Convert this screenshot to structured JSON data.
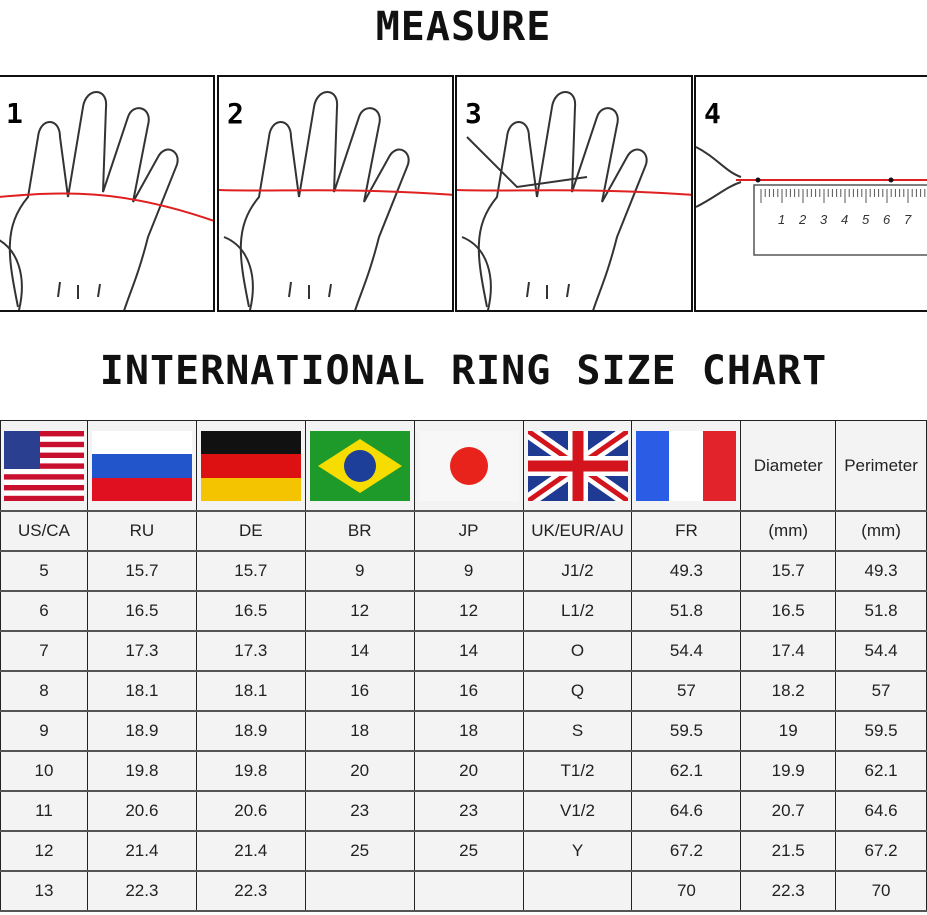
{
  "measure_title": "MEASURE",
  "steps": [
    {
      "number": "1"
    },
    {
      "number": "2"
    },
    {
      "number": "3"
    },
    {
      "number": "4",
      "ruler_marks": [
        "1",
        "2",
        "3",
        "4",
        "5",
        "6",
        "7"
      ]
    }
  ],
  "chart_title": "INTERNATIONAL RING SIZE CHART",
  "colors": {
    "measuring_string": "#e02020",
    "border": "#222222"
  },
  "table": {
    "flags": [
      "us-flag",
      "russia-flag",
      "germany-flag",
      "brazil-flag",
      "japan-flag",
      "uk-flag",
      "france-flag"
    ],
    "header_text": [
      "Diameter",
      "Perimeter"
    ],
    "columns": [
      "US/CA",
      "RU",
      "DE",
      "BR",
      "JP",
      "UK/EUR/AU",
      "FR",
      "(mm)",
      "(mm)"
    ],
    "rows": [
      [
        "5",
        "15.7",
        "15.7",
        "9",
        "9",
        "J1/2",
        "49.3",
        "15.7",
        "49.3"
      ],
      [
        "6",
        "16.5",
        "16.5",
        "12",
        "12",
        "L1/2",
        "51.8",
        "16.5",
        "51.8"
      ],
      [
        "7",
        "17.3",
        "17.3",
        "14",
        "14",
        "O",
        "54.4",
        "17.4",
        "54.4"
      ],
      [
        "8",
        "18.1",
        "18.1",
        "16",
        "16",
        "Q",
        "57",
        "18.2",
        "57"
      ],
      [
        "9",
        "18.9",
        "18.9",
        "18",
        "18",
        "S",
        "59.5",
        "19",
        "59.5"
      ],
      [
        "10",
        "19.8",
        "19.8",
        "20",
        "20",
        "T1/2",
        "62.1",
        "19.9",
        "62.1"
      ],
      [
        "11",
        "20.6",
        "20.6",
        "23",
        "23",
        "V1/2",
        "64.6",
        "20.7",
        "64.6"
      ],
      [
        "12",
        "21.4",
        "21.4",
        "25",
        "25",
        "Y",
        "67.2",
        "21.5",
        "67.2"
      ],
      [
        "13",
        "22.3",
        "22.3",
        "",
        "",
        "",
        "70",
        "22.3",
        "70"
      ]
    ]
  }
}
